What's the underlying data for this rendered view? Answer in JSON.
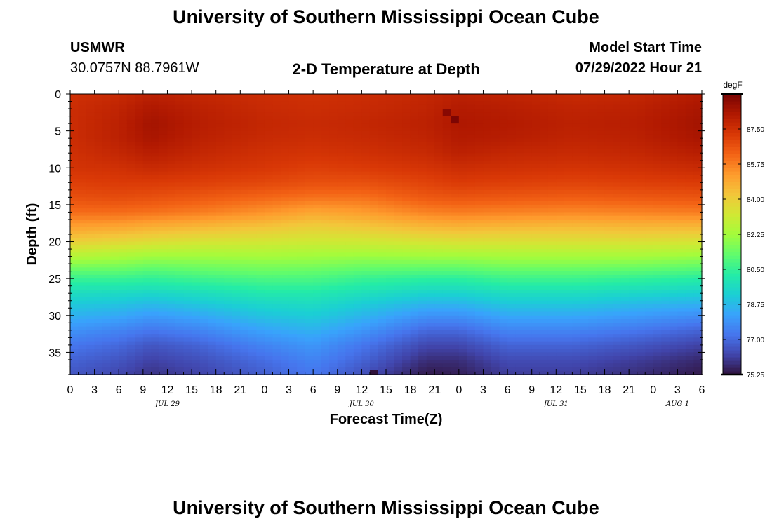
{
  "page_title": "University of Southern Mississippi Ocean Cube",
  "footer_title": "University of Southern Mississippi Ocean Cube",
  "station": {
    "name": "USMWR",
    "coords": "30.0757N  88.7961W"
  },
  "model": {
    "label": "Model Start Time",
    "time": "07/29/2022 Hour 21"
  },
  "chart_data": {
    "type": "heatmap",
    "title": "2-D Temperature at Depth",
    "xlabel": "Forecast Time(Z)",
    "ylabel": "Depth (ft)",
    "x_hours_range": [
      0,
      78
    ],
    "x_tick_hours": [
      0,
      3,
      6,
      9,
      12,
      15,
      18,
      21,
      24,
      27,
      30,
      33,
      36,
      39,
      42,
      45,
      48,
      51,
      54,
      57,
      60,
      63,
      66,
      69,
      72,
      75,
      78
    ],
    "x_tick_labels": [
      "0",
      "3",
      "6",
      "9",
      "12",
      "15",
      "18",
      "21",
      "0",
      "3",
      "6",
      "9",
      "12",
      "15",
      "18",
      "21",
      "0",
      "3",
      "6",
      "9",
      "12",
      "15",
      "18",
      "21",
      "0",
      "3",
      "6"
    ],
    "date_labels": [
      {
        "hour": 12,
        "label": "JUL 29"
      },
      {
        "hour": 36,
        "label": "JUL 30"
      },
      {
        "hour": 60,
        "label": "JUL 31"
      },
      {
        "hour": 75,
        "label": "AUG 1"
      }
    ],
    "ylim": [
      0,
      38
    ],
    "y_inverted": true,
    "y_ticks": [
      0,
      5,
      10,
      15,
      20,
      25,
      30,
      35
    ],
    "colorbar": {
      "units": "degF",
      "range": [
        75.25,
        89.25
      ],
      "tick_values": [
        87.5,
        85.75,
        84.0,
        82.25,
        80.5,
        78.75,
        77.0,
        75.25
      ],
      "tick_labels": [
        "87.50",
        "85.75",
        "84.00",
        "82.25",
        "80.50",
        "78.75",
        "77.00",
        "75.25"
      ],
      "colors": [
        "#30123b",
        "#4145ab",
        "#4675ed",
        "#39a2fc",
        "#1bcfd4",
        "#24eca6",
        "#61fc6c",
        "#a4fc3b",
        "#d1e834",
        "#f3c63a",
        "#fe9b2d",
        "#f36315",
        "#d93806",
        "#b11901",
        "#7a0403"
      ]
    },
    "profile_depths_ft": [
      0,
      2,
      4,
      6,
      8,
      10,
      12,
      14,
      16,
      18,
      19,
      20,
      21,
      22,
      23,
      24,
      25,
      26,
      27,
      28,
      30,
      32,
      34,
      36,
      38
    ],
    "profiles": [
      {
        "hour": 0,
        "temps": [
          87.5,
          87.6,
          87.6,
          87.6,
          87.5,
          87.4,
          87.1,
          86.7,
          86.1,
          85.1,
          84.6,
          84.0,
          83.3,
          82.6,
          81.9,
          81.2,
          80.6,
          80.1,
          79.7,
          79.3,
          78.6,
          77.9,
          77.3,
          76.9,
          76.6
        ]
      },
      {
        "hour": 6,
        "temps": [
          87.7,
          87.9,
          88.0,
          88.0,
          87.8,
          87.5,
          87.2,
          86.8,
          86.1,
          85.0,
          84.4,
          83.8,
          83.1,
          82.4,
          81.8,
          81.2,
          80.6,
          80.1,
          79.6,
          79.2,
          78.4,
          77.6,
          77.0,
          76.6,
          76.3
        ]
      },
      {
        "hour": 10,
        "temps": [
          88.0,
          88.3,
          88.5,
          88.4,
          88.1,
          87.7,
          87.2,
          86.7,
          86.0,
          84.8,
          84.2,
          83.6,
          82.9,
          82.2,
          81.6,
          81.0,
          80.5,
          80.0,
          79.5,
          79.0,
          78.1,
          77.3,
          76.6,
          76.2,
          75.9
        ]
      },
      {
        "hour": 16,
        "temps": [
          87.8,
          88.0,
          88.1,
          88.0,
          87.8,
          87.5,
          87.1,
          86.5,
          85.8,
          84.6,
          84.0,
          83.4,
          82.8,
          82.2,
          81.7,
          81.2,
          80.7,
          80.2,
          79.7,
          79.3,
          78.4,
          77.6,
          76.9,
          76.5,
          76.2
        ]
      },
      {
        "hour": 24,
        "temps": [
          87.6,
          87.7,
          87.8,
          87.7,
          87.5,
          87.3,
          86.9,
          86.2,
          85.4,
          84.3,
          83.8,
          83.3,
          82.8,
          82.3,
          81.8,
          81.4,
          80.9,
          80.5,
          80.1,
          79.7,
          79.0,
          78.3,
          77.6,
          77.1,
          76.8
        ]
      },
      {
        "hour": 30,
        "temps": [
          87.5,
          87.6,
          87.7,
          87.6,
          87.4,
          87.1,
          86.7,
          86.0,
          85.0,
          84.0,
          83.6,
          83.2,
          82.7,
          82.2,
          81.8,
          81.3,
          80.9,
          80.5,
          80.1,
          79.8,
          79.2,
          78.6,
          78.0,
          77.6,
          77.3
        ]
      },
      {
        "hour": 36,
        "temps": [
          87.6,
          87.7,
          87.8,
          87.7,
          87.5,
          87.2,
          86.7,
          86.0,
          85.2,
          84.2,
          83.7,
          83.2,
          82.7,
          82.1,
          81.6,
          81.1,
          80.6,
          80.2,
          79.8,
          79.4,
          78.7,
          78.0,
          77.3,
          76.9,
          76.5
        ]
      },
      {
        "hour": 44,
        "temps": [
          87.8,
          87.9,
          88.0,
          87.9,
          87.7,
          87.4,
          87.0,
          86.5,
          85.7,
          84.6,
          84.0,
          83.4,
          82.8,
          82.2,
          81.6,
          81.0,
          80.4,
          79.9,
          79.4,
          78.9,
          77.9,
          77.0,
          76.3,
          75.8,
          75.4
        ]
      },
      {
        "hour": 48,
        "temps": [
          88.0,
          88.2,
          88.3,
          88.2,
          88.0,
          87.6,
          87.2,
          86.6,
          85.8,
          84.7,
          84.1,
          83.5,
          82.9,
          82.2,
          81.6,
          81.0,
          80.4,
          79.9,
          79.4,
          78.9,
          77.9,
          77.0,
          76.3,
          75.8,
          75.5
        ]
      },
      {
        "hour": 54,
        "temps": [
          87.9,
          88.1,
          88.2,
          88.1,
          87.8,
          87.5,
          87.1,
          86.5,
          85.7,
          84.6,
          84.0,
          83.5,
          82.9,
          82.3,
          81.8,
          81.2,
          80.7,
          80.2,
          79.7,
          79.3,
          78.4,
          77.6,
          76.9,
          76.4,
          76.1
        ]
      },
      {
        "hour": 62,
        "temps": [
          87.7,
          87.9,
          88.0,
          87.9,
          87.7,
          87.4,
          87.0,
          86.4,
          85.6,
          84.5,
          84.0,
          83.5,
          82.9,
          82.3,
          81.8,
          81.2,
          80.7,
          80.2,
          79.7,
          79.3,
          78.4,
          77.6,
          76.9,
          76.4,
          76.1
        ]
      },
      {
        "hour": 70,
        "temps": [
          87.8,
          88.0,
          88.1,
          88.0,
          87.8,
          87.5,
          87.1,
          86.5,
          85.7,
          84.6,
          84.1,
          83.5,
          82.9,
          82.3,
          81.7,
          81.1,
          80.5,
          80.0,
          79.5,
          79.0,
          78.1,
          77.3,
          76.6,
          76.1,
          75.8
        ]
      },
      {
        "hour": 78,
        "temps": [
          88.2,
          88.4,
          88.5,
          88.4,
          88.1,
          87.7,
          87.2,
          86.6,
          85.8,
          84.6,
          84.0,
          83.4,
          82.8,
          82.1,
          81.5,
          80.9,
          80.3,
          79.8,
          79.3,
          78.8,
          77.8,
          76.9,
          76.2,
          75.7,
          75.4
        ]
      }
    ],
    "anomalies": [
      {
        "hour": 46.5,
        "depth_ft": 2.5,
        "temp": 89.0
      },
      {
        "hour": 47.5,
        "depth_ft": 3.5,
        "temp": 89.2
      },
      {
        "hour": 37.5,
        "depth_ft": 37.9,
        "temp": 74.5
      }
    ]
  }
}
